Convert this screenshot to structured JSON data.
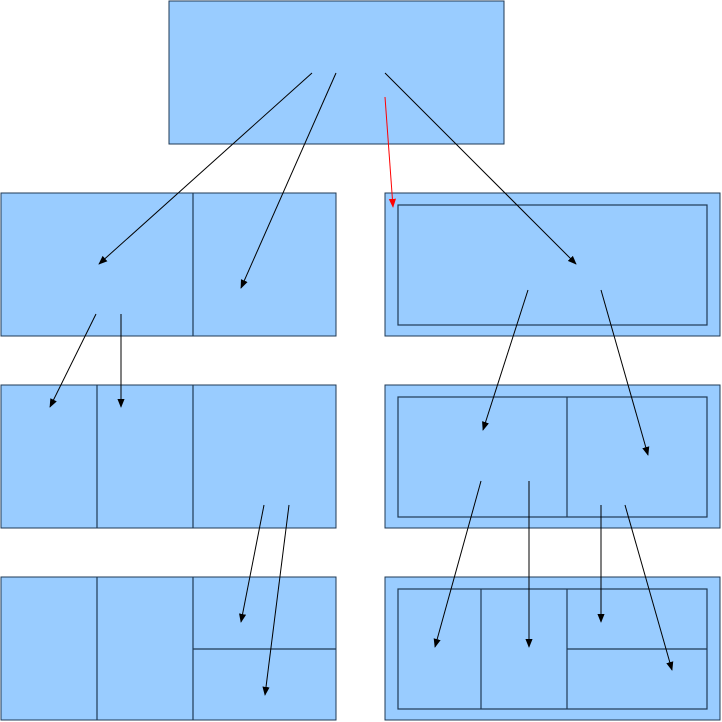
{
  "diagram": {
    "type": "block-split-diagram",
    "text_labels": [],
    "colors": {
      "box_fill": "#99ccff",
      "box_stroke": "#1f3a55",
      "arrow": "#000000",
      "highlight_arrow": "#ff0000"
    },
    "blocks": [
      {
        "id": "root",
        "left": {
          "parts": 1
        }
      },
      {
        "id": "level-1",
        "left": {
          "parts": 2,
          "arrows_from": "root"
        },
        "right": {
          "parts": 1,
          "nested": true,
          "arrows_from": "root",
          "highlight": true
        }
      },
      {
        "id": "level-2",
        "left": {
          "parts": 3
        },
        "right": {
          "parts": 2,
          "nested": true
        }
      },
      {
        "id": "level-3",
        "left": {
          "parts": 4,
          "last_split": "horizontal"
        },
        "right": {
          "parts": 4,
          "nested": true,
          "last_split": "horizontal"
        }
      }
    ]
  }
}
